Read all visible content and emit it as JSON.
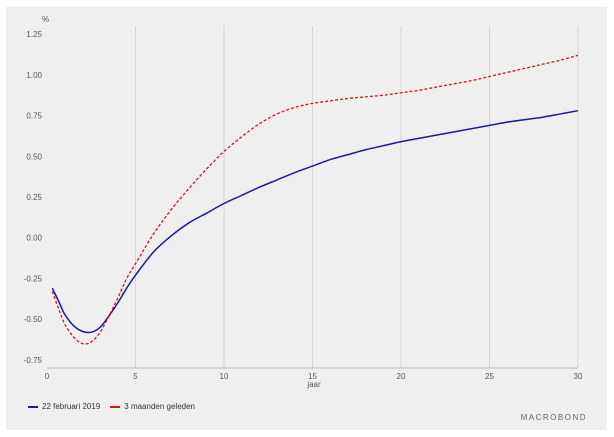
{
  "chart_data": {
    "type": "line",
    "ylabel": "%",
    "xlabel": "jaar",
    "xlim": [
      0,
      30
    ],
    "ylim": [
      -0.8,
      1.3
    ],
    "x_ticks": [
      "0",
      "5",
      "10",
      "15",
      "20",
      "25",
      "30"
    ],
    "y_ticks": [
      "1.25",
      "1.00",
      "0.75",
      "0.50",
      "0.25",
      "0.00",
      "-0.25",
      "-0.50",
      "-0.75"
    ],
    "grid": "vertical",
    "legend_position": "bottom-left",
    "series": [
      {
        "name": "22 februari 2019",
        "color": "#1a1a9e",
        "style": "solid",
        "x": [
          0.3,
          0.7,
          1,
          1.5,
          2,
          2.5,
          3,
          3.5,
          4,
          4.5,
          5,
          6,
          7,
          8,
          9,
          10,
          11,
          12,
          13,
          14,
          15,
          16,
          17,
          18,
          19,
          20,
          21,
          22,
          23,
          24,
          25,
          26,
          27,
          28,
          29,
          30
        ],
        "y": [
          -0.31,
          -0.4,
          -0.47,
          -0.54,
          -0.575,
          -0.58,
          -0.55,
          -0.48,
          -0.4,
          -0.31,
          -0.23,
          -0.09,
          0.01,
          0.09,
          0.15,
          0.21,
          0.26,
          0.31,
          0.355,
          0.4,
          0.44,
          0.48,
          0.51,
          0.54,
          0.565,
          0.59,
          0.61,
          0.63,
          0.65,
          0.67,
          0.69,
          0.71,
          0.725,
          0.74,
          0.76,
          0.78
        ]
      },
      {
        "name": "3 maanden geleden",
        "color": "#cc1a1a",
        "style": "dashed",
        "x": [
          0.3,
          0.7,
          1,
          1.5,
          2,
          2.5,
          3,
          3.5,
          4,
          4.5,
          5,
          6,
          7,
          8,
          9,
          10,
          11,
          12,
          13,
          14,
          15,
          16,
          17,
          18,
          19,
          20,
          21,
          22,
          23,
          24,
          25,
          26,
          27,
          28,
          29,
          30
        ],
        "y": [
          -0.33,
          -0.45,
          -0.53,
          -0.61,
          -0.65,
          -0.64,
          -0.58,
          -0.48,
          -0.37,
          -0.25,
          -0.16,
          0.02,
          0.17,
          0.3,
          0.42,
          0.53,
          0.62,
          0.7,
          0.76,
          0.8,
          0.825,
          0.84,
          0.855,
          0.865,
          0.875,
          0.89,
          0.905,
          0.925,
          0.945,
          0.965,
          0.99,
          1.015,
          1.04,
          1.065,
          1.09,
          1.12
        ]
      }
    ]
  },
  "brand": "MACROBOND"
}
